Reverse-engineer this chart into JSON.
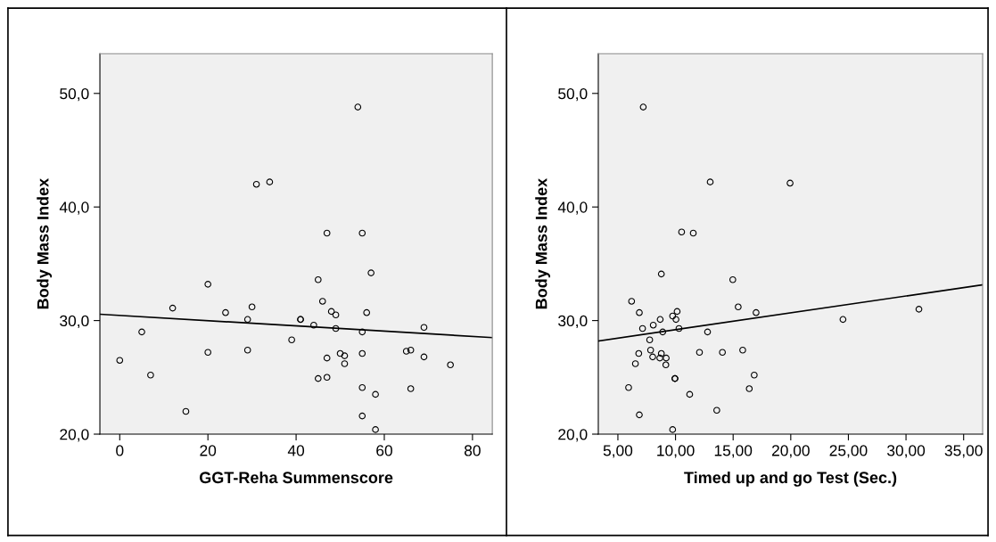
{
  "chart_data": [
    {
      "type": "scatter",
      "xlabel": "GGT-Reha Summenscore",
      "ylabel": "Body Mass Index",
      "grid": false,
      "legend": false,
      "xlim": [
        -4.5,
        84.5
      ],
      "xticks": [
        0,
        20,
        40,
        60,
        80
      ],
      "ylim": [
        20,
        53.5
      ],
      "yticks": [
        {
          "value": 20,
          "label": "20,0"
        },
        {
          "value": 30,
          "label": "30,0"
        },
        {
          "value": 40,
          "label": "40,0"
        },
        {
          "value": 50,
          "label": "50,0"
        }
      ],
      "series": [
        {
          "marker": "circle",
          "color": "#000000",
          "x": [
            0,
            5,
            7,
            12,
            15,
            20,
            20,
            24,
            29,
            29,
            30,
            39,
            41,
            41,
            44,
            45,
            45,
            46,
            47,
            47,
            48,
            49,
            49,
            50,
            51,
            51,
            55,
            55,
            55,
            55,
            56,
            57,
            58,
            58,
            65,
            66,
            66,
            69,
            69,
            75,
            54,
            31,
            34,
            47,
            55
          ],
          "values": [
            26.5,
            29.0,
            25.2,
            31.1,
            22.0,
            33.2,
            27.2,
            30.7,
            30.1,
            27.4,
            31.2,
            28.3,
            30.1,
            30.1,
            29.6,
            33.6,
            24.9,
            31.7,
            26.7,
            25.0,
            30.8,
            30.5,
            29.3,
            27.1,
            26.9,
            26.2,
            29.0,
            27.1,
            24.1,
            21.6,
            30.7,
            34.2,
            23.5,
            20.4,
            27.3,
            27.4,
            24.0,
            29.4,
            26.8,
            26.1,
            48.8,
            42.0,
            42.2,
            37.7,
            37.7
          ]
        },
        {
          "type": "line",
          "color": "#000000",
          "x": [
            -4.5,
            84.5
          ],
          "values": [
            30.56,
            28.5
          ]
        }
      ]
    },
    {
      "type": "scatter",
      "xlabel": "Timed up and go Test (Sec.)",
      "ylabel": "Body Mass Index",
      "grid": false,
      "legend": false,
      "xlim": [
        3.3,
        36.65
      ],
      "xticks": [
        {
          "value": 5,
          "label": "5,00"
        },
        {
          "value": 10,
          "label": "10,00"
        },
        {
          "value": 15,
          "label": "15,00"
        },
        {
          "value": 20,
          "label": "20,00"
        },
        {
          "value": 25,
          "label": "25,00"
        },
        {
          "value": 30,
          "label": "30,00"
        },
        {
          "value": 35,
          "label": "35,00"
        }
      ],
      "ylim": [
        20,
        53.5
      ],
      "yticks": [
        {
          "value": 20,
          "label": "20,0"
        },
        {
          "value": 30,
          "label": "30,0"
        },
        {
          "value": 40,
          "label": "40,0"
        },
        {
          "value": 50,
          "label": "50,0"
        }
      ],
      "series": [
        {
          "marker": "circle",
          "color": "#000000",
          "x": [
            8.77,
            14.97,
            6.19,
            6.86,
            15.44,
            16.99,
            9.75,
            10.14,
            8.67,
            10.04,
            24.53,
            31.12,
            7.14,
            8.07,
            8.89,
            10.3,
            12.78,
            7.76,
            7.84,
            6.81,
            8.02,
            8.77,
            8.64,
            9.19,
            9.16,
            12.08,
            14.07,
            15.83,
            6.52,
            9.94,
            9.96,
            16.83,
            5.93,
            16.4,
            11.23,
            13.58,
            6.86,
            9.75,
            7.2,
            13.01,
            19.94,
            10.53,
            11.54
          ],
          "values": [
            34.1,
            33.6,
            31.7,
            30.7,
            31.2,
            30.7,
            30.4,
            30.8,
            30.1,
            30.1,
            30.1,
            31.0,
            29.3,
            29.6,
            29.0,
            29.3,
            29.0,
            28.3,
            27.4,
            27.1,
            26.8,
            27.1,
            26.7,
            26.7,
            26.1,
            27.2,
            27.2,
            27.4,
            26.2,
            24.9,
            24.9,
            25.2,
            24.1,
            24.0,
            23.5,
            22.1,
            21.7,
            20.4,
            48.8,
            42.2,
            42.1,
            37.8,
            37.7
          ]
        },
        {
          "type": "line",
          "color": "#000000",
          "x": [
            3.3,
            36.65
          ],
          "values": [
            28.2,
            33.15
          ]
        }
      ]
    }
  ]
}
